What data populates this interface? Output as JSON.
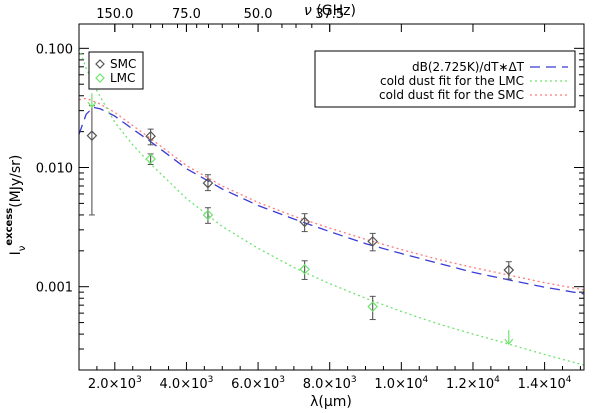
{
  "chart_data": {
    "type": "scatter",
    "top_axis": {
      "label_symbol": "ν",
      "label_unit": " (GHz)",
      "tick_labels": [
        "150.0",
        "75.0",
        "50.0",
        "37.5"
      ],
      "tick_values": [
        150.0,
        75.0,
        50.0,
        37.5
      ]
    },
    "x_axis": {
      "label": "λ(μm)",
      "lim": [
        1000,
        15100
      ],
      "ticks": [
        {
          "value": 2000,
          "mantissa": "2.0×10",
          "exp": "3"
        },
        {
          "value": 4000,
          "mantissa": "4.0×10",
          "exp": "3"
        },
        {
          "value": 6000,
          "mantissa": "6.0×10",
          "exp": "3"
        },
        {
          "value": 8000,
          "mantissa": "8.0×10",
          "exp": "3"
        },
        {
          "value": 10000,
          "mantissa": "1.0×10",
          "exp": "4"
        },
        {
          "value": 12000,
          "mantissa": "1.2×10",
          "exp": "4"
        },
        {
          "value": 14000,
          "mantissa": "1.4×10",
          "exp": "4"
        }
      ]
    },
    "y_axis": {
      "label_main": "I",
      "label_sub": "ν",
      "label_sup": "excess",
      "label_unit": "(MJy/sr)",
      "scale": "log",
      "lim": [
        0.0002,
        0.16
      ],
      "tick_labels": [
        "0.001",
        "0.010",
        "0.100"
      ],
      "tick_values": [
        0.001,
        0.01,
        0.1
      ]
    },
    "legend_points": [
      {
        "label": "SMC",
        "color": "#555555"
      },
      {
        "label": "LMC",
        "color": "#6fe36f"
      }
    ],
    "legend_lines": [
      {
        "label": "dB(2.725K)/dT∗ΔT",
        "color": "#3b3bd6",
        "dash": "10,6"
      },
      {
        "label": "cold dust fit for the LMC",
        "color": "#6fe36f",
        "dash": "2,3"
      },
      {
        "label": "cold dust fit for the SMC",
        "color": "#ff7b7b",
        "dash": "2,3"
      }
    ],
    "series": [
      {
        "name": "SMC",
        "color": "#555555",
        "points": [
          {
            "x": 1360,
            "y": 0.0185,
            "lo": 0.004,
            "hi": 0.033
          },
          {
            "x": 3000,
            "y": 0.0183,
            "lo": 0.0155,
            "hi": 0.021
          },
          {
            "x": 4600,
            "y": 0.0074,
            "lo": 0.0064,
            "hi": 0.0087
          },
          {
            "x": 7300,
            "y": 0.0035,
            "lo": 0.0029,
            "hi": 0.0041
          },
          {
            "x": 9200,
            "y": 0.0024,
            "lo": 0.002,
            "hi": 0.0028
          },
          {
            "x": 13000,
            "y": 0.00138,
            "lo": 0.00116,
            "hi": 0.00162
          }
        ]
      },
      {
        "name": "LMC",
        "color": "#6fe36f",
        "points": [
          {
            "x": 3000,
            "y": 0.0118,
            "lo": 0.0106,
            "hi": 0.013
          },
          {
            "x": 4600,
            "y": 0.004,
            "lo": 0.0034,
            "hi": 0.0046
          },
          {
            "x": 7300,
            "y": 0.0014,
            "lo": 0.00115,
            "hi": 0.00165
          },
          {
            "x": 9200,
            "y": 0.00068,
            "lo": 0.00053,
            "hi": 0.00083
          }
        ],
        "upper_limits": [
          {
            "x": 1360,
            "y": 0.032
          },
          {
            "x": 13000,
            "y": 0.00033
          }
        ]
      }
    ],
    "curves": [
      {
        "name": "dB(2.725K)/dT∗ΔT",
        "color": "#3b3bd6",
        "dash": "10,6",
        "x": [
          1000,
          1200,
          1400,
          1600,
          2000,
          2500,
          3000,
          4000,
          5000,
          6000,
          7000,
          8000,
          9000,
          10000,
          11000,
          12000,
          13000,
          14000,
          15100
        ],
        "y": [
          0.019,
          0.028,
          0.032,
          0.031,
          0.027,
          0.021,
          0.0165,
          0.0098,
          0.0066,
          0.0048,
          0.0037,
          0.0029,
          0.0023,
          0.0019,
          0.00158,
          0.00132,
          0.00114,
          0.00099,
          0.00087
        ]
      },
      {
        "name": "cold dust fit for the SMC",
        "color": "#ff7b7b",
        "dash": "2,3",
        "x": [
          1000,
          1200,
          1400,
          1600,
          2000,
          2500,
          3000,
          4000,
          5000,
          6000,
          7000,
          8000,
          9000,
          10000,
          11000,
          12000,
          13000,
          14000,
          15100
        ],
        "y": [
          0.037,
          0.038,
          0.036,
          0.034,
          0.029,
          0.0225,
          0.0175,
          0.0104,
          0.007,
          0.0051,
          0.0039,
          0.0031,
          0.0025,
          0.00205,
          0.0017,
          0.00145,
          0.00125,
          0.00108,
          0.00094
        ]
      },
      {
        "name": "cold dust fit for the LMC",
        "color": "#6fe36f",
        "dash": "2,3",
        "x": [
          1000,
          1200,
          1500,
          2000,
          2500,
          3000,
          4000,
          5000,
          6000,
          7000,
          8000,
          9000,
          10000,
          11000,
          12000,
          13000,
          14000,
          15100
        ],
        "y": [
          0.1,
          0.068,
          0.044,
          0.024,
          0.0155,
          0.0107,
          0.0055,
          0.0032,
          0.0021,
          0.00145,
          0.00106,
          0.0008,
          0.00062,
          0.00049,
          0.0004,
          0.00033,
          0.00027,
          0.00022
        ]
      }
    ]
  }
}
